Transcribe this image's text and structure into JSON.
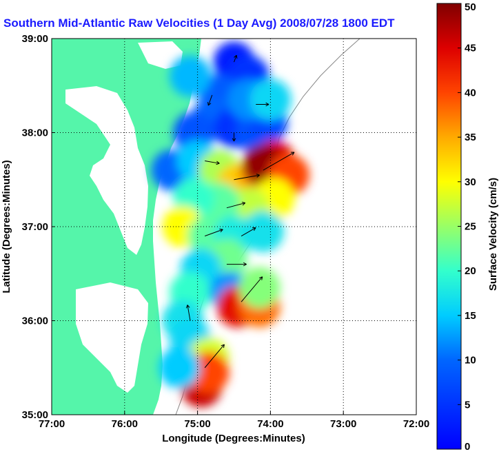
{
  "chart_data": {
    "type": "heatmap",
    "title": "Southern Mid-Atlantic Raw Velocities (1 Day Avg) 2008/07/28 1800 EDT",
    "xlabel": "Longitude (Degrees:Minutes)",
    "ylabel": "Latitude (Degrees:Minutes)",
    "colorbar_label": "Surface Velocity (cm/s)",
    "xlim": [
      -77,
      -72
    ],
    "ylim": [
      35,
      39
    ],
    "x_ticks": [
      -77,
      -76,
      -75,
      -74,
      -73,
      -72
    ],
    "x_tick_labels": [
      "77:00",
      "76:00",
      "75:00",
      "74:00",
      "73:00",
      "72:00"
    ],
    "y_ticks": [
      35,
      36,
      37,
      38,
      39
    ],
    "y_tick_labels": [
      "35:00",
      "36:00",
      "37:00",
      "38:00",
      "39:00"
    ],
    "colorbar_range": [
      0,
      50
    ],
    "colorbar_ticks": [
      0,
      5,
      10,
      15,
      20,
      25,
      30,
      35,
      40,
      45,
      50
    ],
    "grid": true,
    "land_color": "#55f5aa",
    "velocity_cells": [
      {
        "lon": -74.5,
        "lat": 38.75,
        "speed": 3
      },
      {
        "lon": -74.3,
        "lat": 38.6,
        "speed": 5
      },
      {
        "lon": -74.7,
        "lat": 38.4,
        "speed": 9
      },
      {
        "lon": -74.8,
        "lat": 38.15,
        "speed": 10
      },
      {
        "lon": -74.5,
        "lat": 38.05,
        "speed": 5
      },
      {
        "lon": -74.2,
        "lat": 38.0,
        "speed": 8
      },
      {
        "lon": -74.05,
        "lat": 38.1,
        "speed": 7
      },
      {
        "lon": -74.3,
        "lat": 38.35,
        "speed": 12
      },
      {
        "lon": -74.0,
        "lat": 38.35,
        "speed": 16
      },
      {
        "lon": -75.1,
        "lat": 38.6,
        "speed": 14
      },
      {
        "lon": -75.05,
        "lat": 38.0,
        "speed": 8
      },
      {
        "lon": -75.35,
        "lat": 37.6,
        "speed": 10
      },
      {
        "lon": -75.0,
        "lat": 37.7,
        "speed": 15
      },
      {
        "lon": -74.7,
        "lat": 37.6,
        "speed": 26
      },
      {
        "lon": -74.45,
        "lat": 37.45,
        "speed": 33
      },
      {
        "lon": -74.15,
        "lat": 37.55,
        "speed": 36
      },
      {
        "lon": -73.95,
        "lat": 37.7,
        "speed": 45
      },
      {
        "lon": -74.1,
        "lat": 37.65,
        "speed": 49
      },
      {
        "lon": -73.75,
        "lat": 37.55,
        "speed": 40
      },
      {
        "lon": -73.95,
        "lat": 37.3,
        "speed": 30
      },
      {
        "lon": -74.3,
        "lat": 37.2,
        "speed": 27
      },
      {
        "lon": -74.7,
        "lat": 37.25,
        "speed": 22
      },
      {
        "lon": -75.05,
        "lat": 37.3,
        "speed": 20
      },
      {
        "lon": -75.2,
        "lat": 37.0,
        "speed": 30
      },
      {
        "lon": -74.85,
        "lat": 36.9,
        "speed": 22
      },
      {
        "lon": -74.5,
        "lat": 36.9,
        "speed": 18
      },
      {
        "lon": -74.1,
        "lat": 36.95,
        "speed": 17
      },
      {
        "lon": -74.6,
        "lat": 36.65,
        "speed": 23
      },
      {
        "lon": -74.95,
        "lat": 36.55,
        "speed": 16
      },
      {
        "lon": -75.1,
        "lat": 36.3,
        "speed": 20
      },
      {
        "lon": -74.55,
        "lat": 36.3,
        "speed": 12
      },
      {
        "lon": -74.45,
        "lat": 36.15,
        "speed": 44
      },
      {
        "lon": -74.15,
        "lat": 36.15,
        "speed": 38
      },
      {
        "lon": -74.15,
        "lat": 36.35,
        "speed": 24
      },
      {
        "lon": -75.2,
        "lat": 36.0,
        "speed": 17
      },
      {
        "lon": -75.1,
        "lat": 35.8,
        "speed": 16
      },
      {
        "lon": -74.85,
        "lat": 35.6,
        "speed": 28
      },
      {
        "lon": -74.95,
        "lat": 35.3,
        "speed": 46
      },
      {
        "lon": -74.85,
        "lat": 35.45,
        "speed": 40
      },
      {
        "lon": -75.25,
        "lat": 35.5,
        "speed": 15
      }
    ],
    "vectors": [
      {
        "lon": -74.5,
        "lat": 38.75,
        "dir": 20,
        "speed": 3
      },
      {
        "lon": -74.8,
        "lat": 38.4,
        "dir": 200,
        "speed": 9
      },
      {
        "lon": -74.5,
        "lat": 38.0,
        "dir": 180,
        "speed": 5
      },
      {
        "lon": -74.2,
        "lat": 38.3,
        "dir": 90,
        "speed": 12
      },
      {
        "lon": -74.9,
        "lat": 37.7,
        "dir": 100,
        "speed": 15
      },
      {
        "lon": -74.5,
        "lat": 37.5,
        "dir": 80,
        "speed": 33
      },
      {
        "lon": -74.1,
        "lat": 37.6,
        "dir": 60,
        "speed": 49
      },
      {
        "lon": -74.6,
        "lat": 37.2,
        "dir": 75,
        "speed": 22
      },
      {
        "lon": -74.9,
        "lat": 36.9,
        "dir": 70,
        "speed": 22
      },
      {
        "lon": -74.4,
        "lat": 36.9,
        "dir": 60,
        "speed": 18
      },
      {
        "lon": -74.6,
        "lat": 36.6,
        "dir": 90,
        "speed": 23
      },
      {
        "lon": -74.4,
        "lat": 36.2,
        "dir": 40,
        "speed": 44
      },
      {
        "lon": -75.1,
        "lat": 36.0,
        "dir": 350,
        "speed": 17
      },
      {
        "lon": -74.9,
        "lat": 35.5,
        "dir": 40,
        "speed": 40
      }
    ]
  }
}
